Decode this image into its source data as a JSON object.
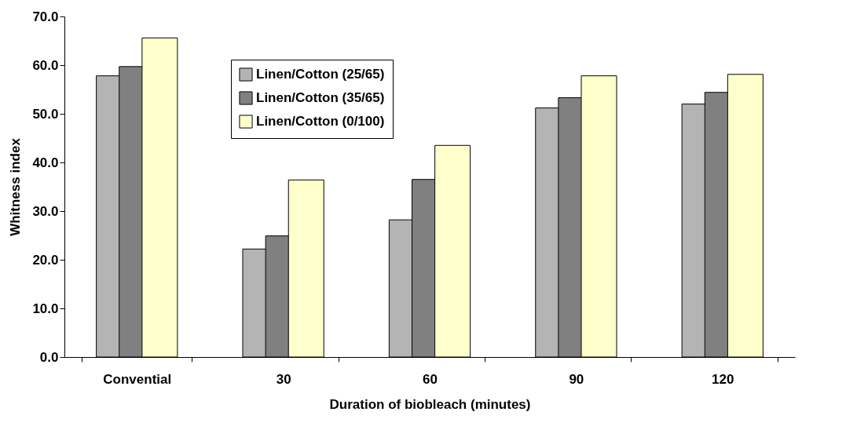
{
  "chart_data": {
    "type": "bar",
    "xlabel": "Duration of biobleach (minutes)",
    "ylabel": "Whitness index",
    "categories": [
      "Convential",
      "30",
      "60",
      "90",
      "120"
    ],
    "series": [
      {
        "name": "Linen/Cotton (25/65)",
        "color": "#b4b4b4",
        "values": [
          57.8,
          22.2,
          28.2,
          51.2,
          52.0
        ]
      },
      {
        "name": "Linen/Cotton (35/65)",
        "color": "#808080",
        "values": [
          59.7,
          24.9,
          36.5,
          53.3,
          54.4
        ]
      },
      {
        "name": "Linen/Cotton (0/100)",
        "color": "#ffffcc",
        "values": [
          65.6,
          36.4,
          43.5,
          57.8,
          58.1
        ]
      }
    ],
    "ylim": [
      0,
      70
    ],
    "yticks": [
      {
        "value": 0,
        "label": "0.0"
      },
      {
        "value": 10,
        "label": "10.0"
      },
      {
        "value": 20,
        "label": "20.0"
      },
      {
        "value": 30,
        "label": "30.0"
      },
      {
        "value": 40,
        "label": "40.0"
      },
      {
        "value": 50,
        "label": "50.0"
      },
      {
        "value": 60,
        "label": "60.0"
      },
      {
        "value": 70,
        "label": "70.0"
      }
    ],
    "grid": false,
    "legend": "top left"
  }
}
